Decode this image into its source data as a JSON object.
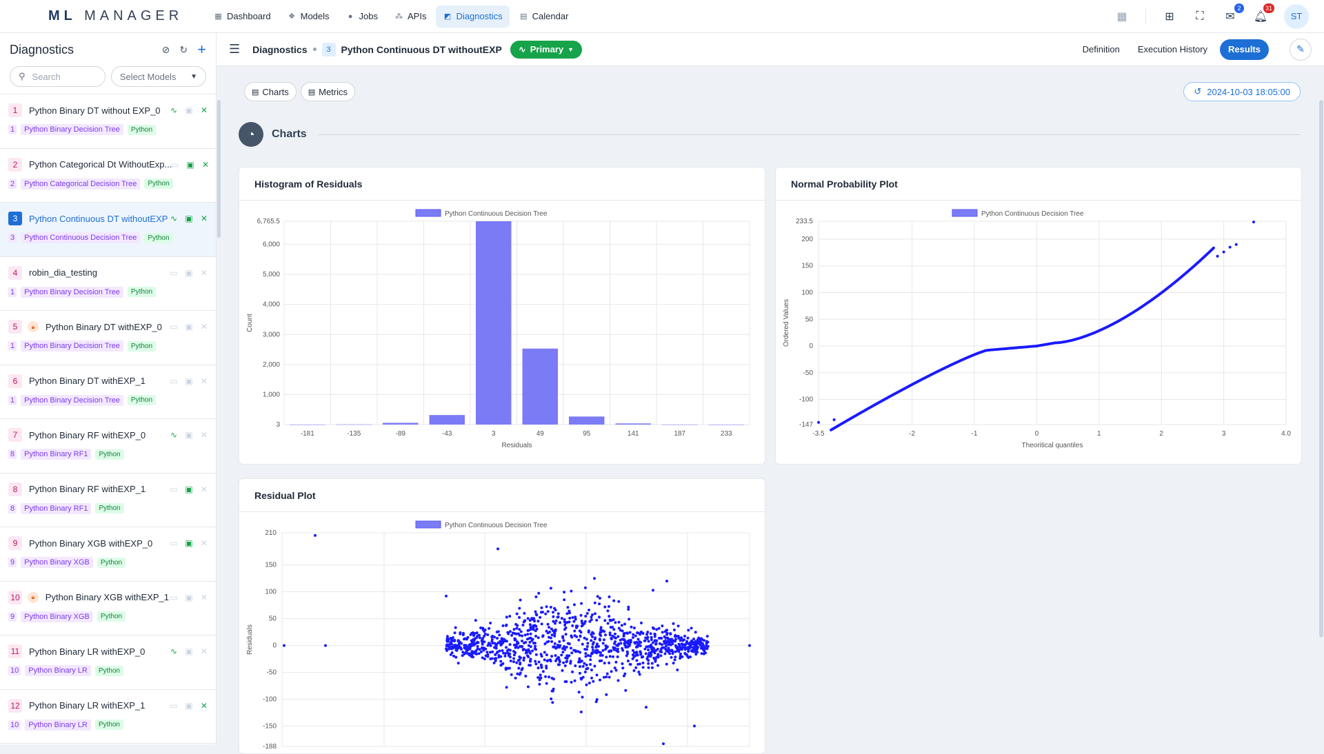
{
  "app": {
    "logo_bold": "ML",
    "logo_rest": "MANAGER"
  },
  "nav": [
    {
      "label": "Dashboard",
      "icon": "dashboard-icon",
      "glyph": "▦"
    },
    {
      "label": "Models",
      "icon": "models-icon",
      "glyph": "❖"
    },
    {
      "label": "Jobs",
      "icon": "jobs-icon",
      "glyph": "●"
    },
    {
      "label": "APIs",
      "icon": "apis-icon",
      "glyph": "⁂"
    },
    {
      "label": "Diagnostics",
      "icon": "diagnostics-icon",
      "glyph": "◩",
      "active": true
    },
    {
      "label": "Calendar",
      "icon": "calendar-icon",
      "glyph": "▤"
    }
  ],
  "topbar": {
    "messages_count": "2",
    "notifications_count": "31",
    "avatar": "ST"
  },
  "sidebar": {
    "title": "Diagnostics",
    "search_placeholder": "Search",
    "select_placeholder": "Select Models",
    "items": [
      {
        "num": "1",
        "name": "Python Binary DT without EXP_0",
        "ver": "1",
        "model": "Python Binary Decision Tree",
        "lang": "Python",
        "icons": [
          "on",
          "off",
          "on"
        ],
        "first": "pulse"
      },
      {
        "num": "2",
        "name": "Python Categorical Dt WithoutExp...",
        "ver": "2",
        "model": "Python Categorical Decision Tree",
        "lang": "Python",
        "icons": [
          "off",
          "on",
          "on"
        ],
        "first": "monitor"
      },
      {
        "num": "3",
        "name": "Python Continuous DT withoutEXP",
        "ver": "3",
        "model": "Python Continuous Decision Tree",
        "lang": "Python",
        "icons": [
          "on",
          "on",
          "on"
        ],
        "first": "pulse",
        "selected": true
      },
      {
        "num": "4",
        "name": "robin_dia_testing",
        "ver": "1",
        "model": "Python Binary Decision Tree",
        "lang": "Python",
        "icons": [
          "off",
          "off",
          "off"
        ],
        "first": "monitor-off"
      },
      {
        "num": "5",
        "name": "Python Binary DT withEXP_0",
        "ver": "1",
        "model": "Python Binary Decision Tree",
        "lang": "Python",
        "icons": [
          "off",
          "off",
          "off"
        ],
        "first": "monitor-off",
        "locked": true
      },
      {
        "num": "6",
        "name": "Python Binary DT withEXP_1",
        "ver": "1",
        "model": "Python Binary Decision Tree",
        "lang": "Python",
        "icons": [
          "off",
          "off",
          "off"
        ],
        "first": "monitor-off"
      },
      {
        "num": "7",
        "name": "Python Binary RF withEXP_0",
        "ver": "8",
        "model": "Python Binary RF1",
        "lang": "Python",
        "icons": [
          "on",
          "off",
          "off"
        ],
        "first": "pulse"
      },
      {
        "num": "8",
        "name": "Python Binary RF withEXP_1",
        "ver": "8",
        "model": "Python Binary RF1",
        "lang": "Python",
        "icons": [
          "off",
          "on",
          "off"
        ],
        "first": "monitor"
      },
      {
        "num": "9",
        "name": "Python Binary XGB withEXP_0",
        "ver": "9",
        "model": "Python Binary XGB",
        "lang": "Python",
        "icons": [
          "off",
          "on",
          "off"
        ],
        "first": "monitor-off"
      },
      {
        "num": "10",
        "name": "Python Binary XGB withEXP_1",
        "ver": "9",
        "model": "Python Binary XGB",
        "lang": "Python",
        "icons": [
          "off",
          "off",
          "off"
        ],
        "first": "monitor-off",
        "locked": true
      },
      {
        "num": "11",
        "name": "Python Binary LR withEXP_0",
        "ver": "10",
        "model": "Python Binary LR",
        "lang": "Python",
        "icons": [
          "on",
          "off",
          "off"
        ],
        "first": "pulse"
      },
      {
        "num": "12",
        "name": "Python Binary LR withEXP_1",
        "ver": "10",
        "model": "Python Binary LR",
        "lang": "Python",
        "icons": [
          "off",
          "off",
          "on"
        ],
        "first": "monitor-off"
      }
    ]
  },
  "header": {
    "crumb": "Diagnostics",
    "num": "3",
    "title": "Python Continuous DT withoutEXP",
    "primary": "Primary",
    "tabs": [
      "Definition",
      "Execution History",
      "Results"
    ]
  },
  "subtabs": [
    "Charts",
    "Metrics"
  ],
  "date": "2024-10-03 18:05:00",
  "section": "Charts",
  "colors": {
    "accent": "#1d6fd6",
    "point": "#1a1aff",
    "bar": "#7b7bf5"
  },
  "chart_data": [
    {
      "type": "bar",
      "title": "Histogram of Residuals",
      "legend": "Python Continuous Decision Tree",
      "xlabel": "Residuals",
      "ylabel": "Count",
      "categories": [
        "-181",
        "-135",
        "-89",
        "-43",
        "3",
        "49",
        "95",
        "141",
        "187",
        "233"
      ],
      "values": [
        2,
        8,
        60,
        320,
        6765.5,
        2530,
        270,
        40,
        6,
        2
      ],
      "yticks": [
        "3",
        "1,000",
        "2,000",
        "3,000",
        "4,000",
        "5,000",
        "6,000",
        "6,765.5"
      ],
      "ylim": [
        3,
        6765.5
      ]
    },
    {
      "type": "scatter",
      "title": "Normal Probability Plot",
      "legend": "Python Continuous Decision Tree",
      "xlabel": "Theoritical quantiles",
      "ylabel": "Ordered Values",
      "xticks": [
        "-3.5",
        "-2",
        "-1",
        "0",
        "1",
        "2",
        "3",
        "4.0"
      ],
      "yticks": [
        "-147",
        "-100",
        "-50",
        "0",
        "50",
        "100",
        "150",
        "200",
        "233.5"
      ],
      "xlim": [
        -3.5,
        4.0
      ],
      "ylim": [
        -147,
        233.5
      ]
    },
    {
      "type": "scatter",
      "title": "Residual Plot",
      "legend": "Python Continuous Decision Tree",
      "ylabel": "Residuals",
      "yticks": [
        "-188",
        "-150",
        "-100",
        "-50",
        "0",
        "50",
        "100",
        "150",
        "210"
      ],
      "ylim": [
        -188,
        210
      ]
    }
  ]
}
